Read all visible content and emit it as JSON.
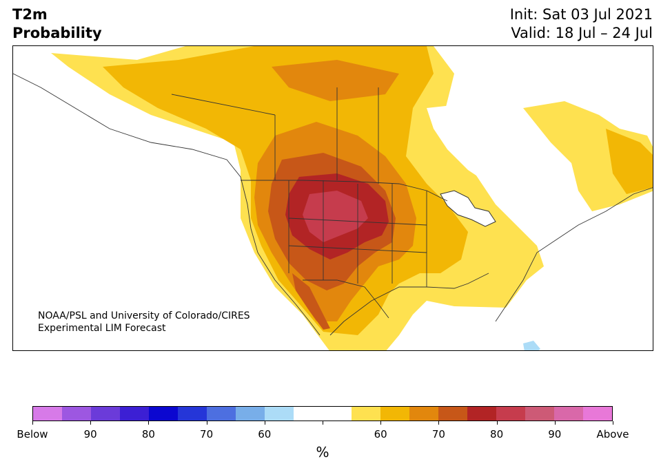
{
  "header": {
    "title_line1": "T2m",
    "title_line2": "Probability",
    "init_text": "Init: Sat 03 Jul 2021",
    "valid_text": "Valid: 18 Jul – 24 Jul"
  },
  "credit": {
    "line1": "NOAA/PSL and University of Colorado/CIRES",
    "line2": "Experimental LIM Forecast"
  },
  "colorbar": {
    "unit_label": "%",
    "colors": [
      "#d77ae8",
      "#9d57e1",
      "#6b3bd9",
      "#3c1fd4",
      "#0b07d0",
      "#2536d8",
      "#4d6fe0",
      "#78aee9",
      "#acdcf7",
      "#ffffff",
      "#ffffff",
      "#fee150",
      "#f2b705",
      "#e2870d",
      "#c75718",
      "#b22425",
      "#c63c4d",
      "#cd5a76",
      "#d968a9",
      "#e878d8"
    ],
    "tick_labels": [
      "Below",
      "90",
      "80",
      "70",
      "60",
      "",
      "60",
      "70",
      "80",
      "90",
      "Above"
    ]
  },
  "map": {
    "category_colors": {
      "above_50": "#fee150",
      "above_60": "#f2b705",
      "above_70": "#e2870d",
      "above_80": "#c75718",
      "above_90": "#b22425",
      "above_95": "#c63c4d",
      "below_60": "#acdcf7"
    }
  }
}
